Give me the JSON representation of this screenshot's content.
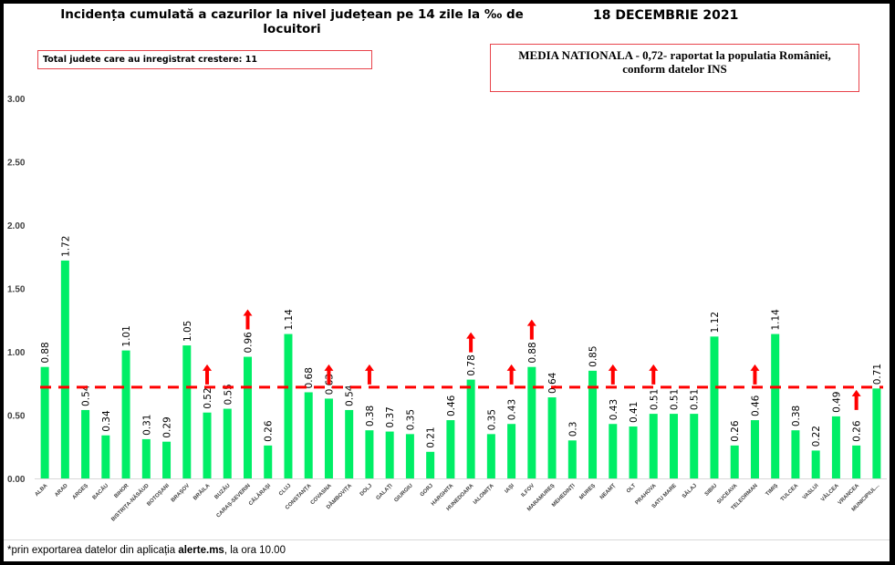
{
  "title": "Incidența cumulată a cazurilor la nivel județean pe 14 zile la ‰ de locuitori",
  "date": "18 DECEMBRIE 2021",
  "increase_box": "Total judete care au inregistrat crestere: 11",
  "national_box": {
    "line1": "MEDIA NATIONALA - 0,72-  raportat la populatia României,",
    "line2": "conform datelor INS"
  },
  "footer": {
    "prefix": "*prin exportarea datelor din aplicația ",
    "app": "alerte.ms",
    "suffix": ", la ora 10.00"
  },
  "colors": {
    "bar": "#00ee66",
    "average_line": "#ff0000",
    "arrow": "#ff0000",
    "box_border": "#e8434b"
  },
  "chart_data": {
    "type": "bar",
    "title": "Incidența cumulată a cazurilor la nivel județean pe 14 zile la ‰ de locuitori",
    "xlabel": "",
    "ylabel": "",
    "ylim": [
      0,
      3
    ],
    "yticks": [
      "0.00",
      "0.50",
      "1.00",
      "1.50",
      "2.00",
      "2.50",
      "3.00"
    ],
    "grid": false,
    "national_average": 0.72,
    "categories": [
      "ALBA",
      "ARAD",
      "ARGEȘ",
      "BACĂU",
      "BIHOR",
      "BISTRIȚA-NĂSĂUD",
      "BOTOȘANI",
      "BRAȘOV",
      "BRĂILA",
      "BUZĂU",
      "CARAȘ-SEVERIN",
      "CĂLĂRAȘI",
      "CLUJ",
      "CONSTANȚA",
      "COVASNA",
      "DÂMBOVIȚA",
      "DOLJ",
      "GALAȚI",
      "GIURGIU",
      "GORJ",
      "HARGHITA",
      "HUNEDOARA",
      "IALOMIȚA",
      "IAȘI",
      "ILFOV",
      "MARAMUREȘ",
      "MEHEDINȚI",
      "MUREȘ",
      "NEAMȚ",
      "OLT",
      "PRAHOVA",
      "SATU MARE",
      "SĂLAJ",
      "SIBIU",
      "SUCEAVA",
      "TELEORMAN",
      "TIMIȘ",
      "TULCEA",
      "VASLUI",
      "VÂLCEA",
      "VRANCEA",
      "MUNICIPIUL..."
    ],
    "values": [
      0.88,
      1.72,
      0.54,
      0.34,
      1.01,
      0.31,
      0.29,
      1.05,
      0.52,
      0.55,
      0.96,
      0.26,
      1.14,
      0.68,
      0.63,
      0.54,
      0.38,
      0.37,
      0.35,
      0.21,
      0.46,
      0.78,
      0.35,
      0.43,
      0.88,
      0.64,
      0.3,
      0.85,
      0.43,
      0.41,
      0.51,
      0.51,
      0.51,
      1.12,
      0.26,
      0.46,
      1.14,
      0.38,
      0.22,
      0.49,
      0.26,
      0.71
    ],
    "labels": [
      "0.88",
      "1.72",
      "0.54",
      "0.34",
      "1.01",
      "0.31",
      "0.29",
      "1.05",
      "0.52",
      "0.55",
      "0.96",
      "0.26",
      "1.14",
      "0.68",
      "0.63",
      "0.54",
      "0.38",
      "0.37",
      "0.35",
      "0.21",
      "0.46",
      "0.78",
      "0.35",
      "0.43",
      "0.88",
      "0.64",
      "0.3",
      "0.85",
      "0.43",
      "0.41",
      "0.51",
      "0.51",
      "0.51",
      "1.12",
      "0.26",
      "0.46",
      "1.14",
      "0.38",
      "0.22",
      "0.49",
      "0.26",
      "0.71"
    ],
    "increase": [
      "BRĂILA",
      "CARAȘ-SEVERIN",
      "COVASNA",
      "DOLJ",
      "HUNEDOARA",
      "IAȘI",
      "ILFOV",
      "NEAMȚ",
      "PRAHOVA",
      "TELEORMAN",
      "VRANCEA"
    ]
  }
}
